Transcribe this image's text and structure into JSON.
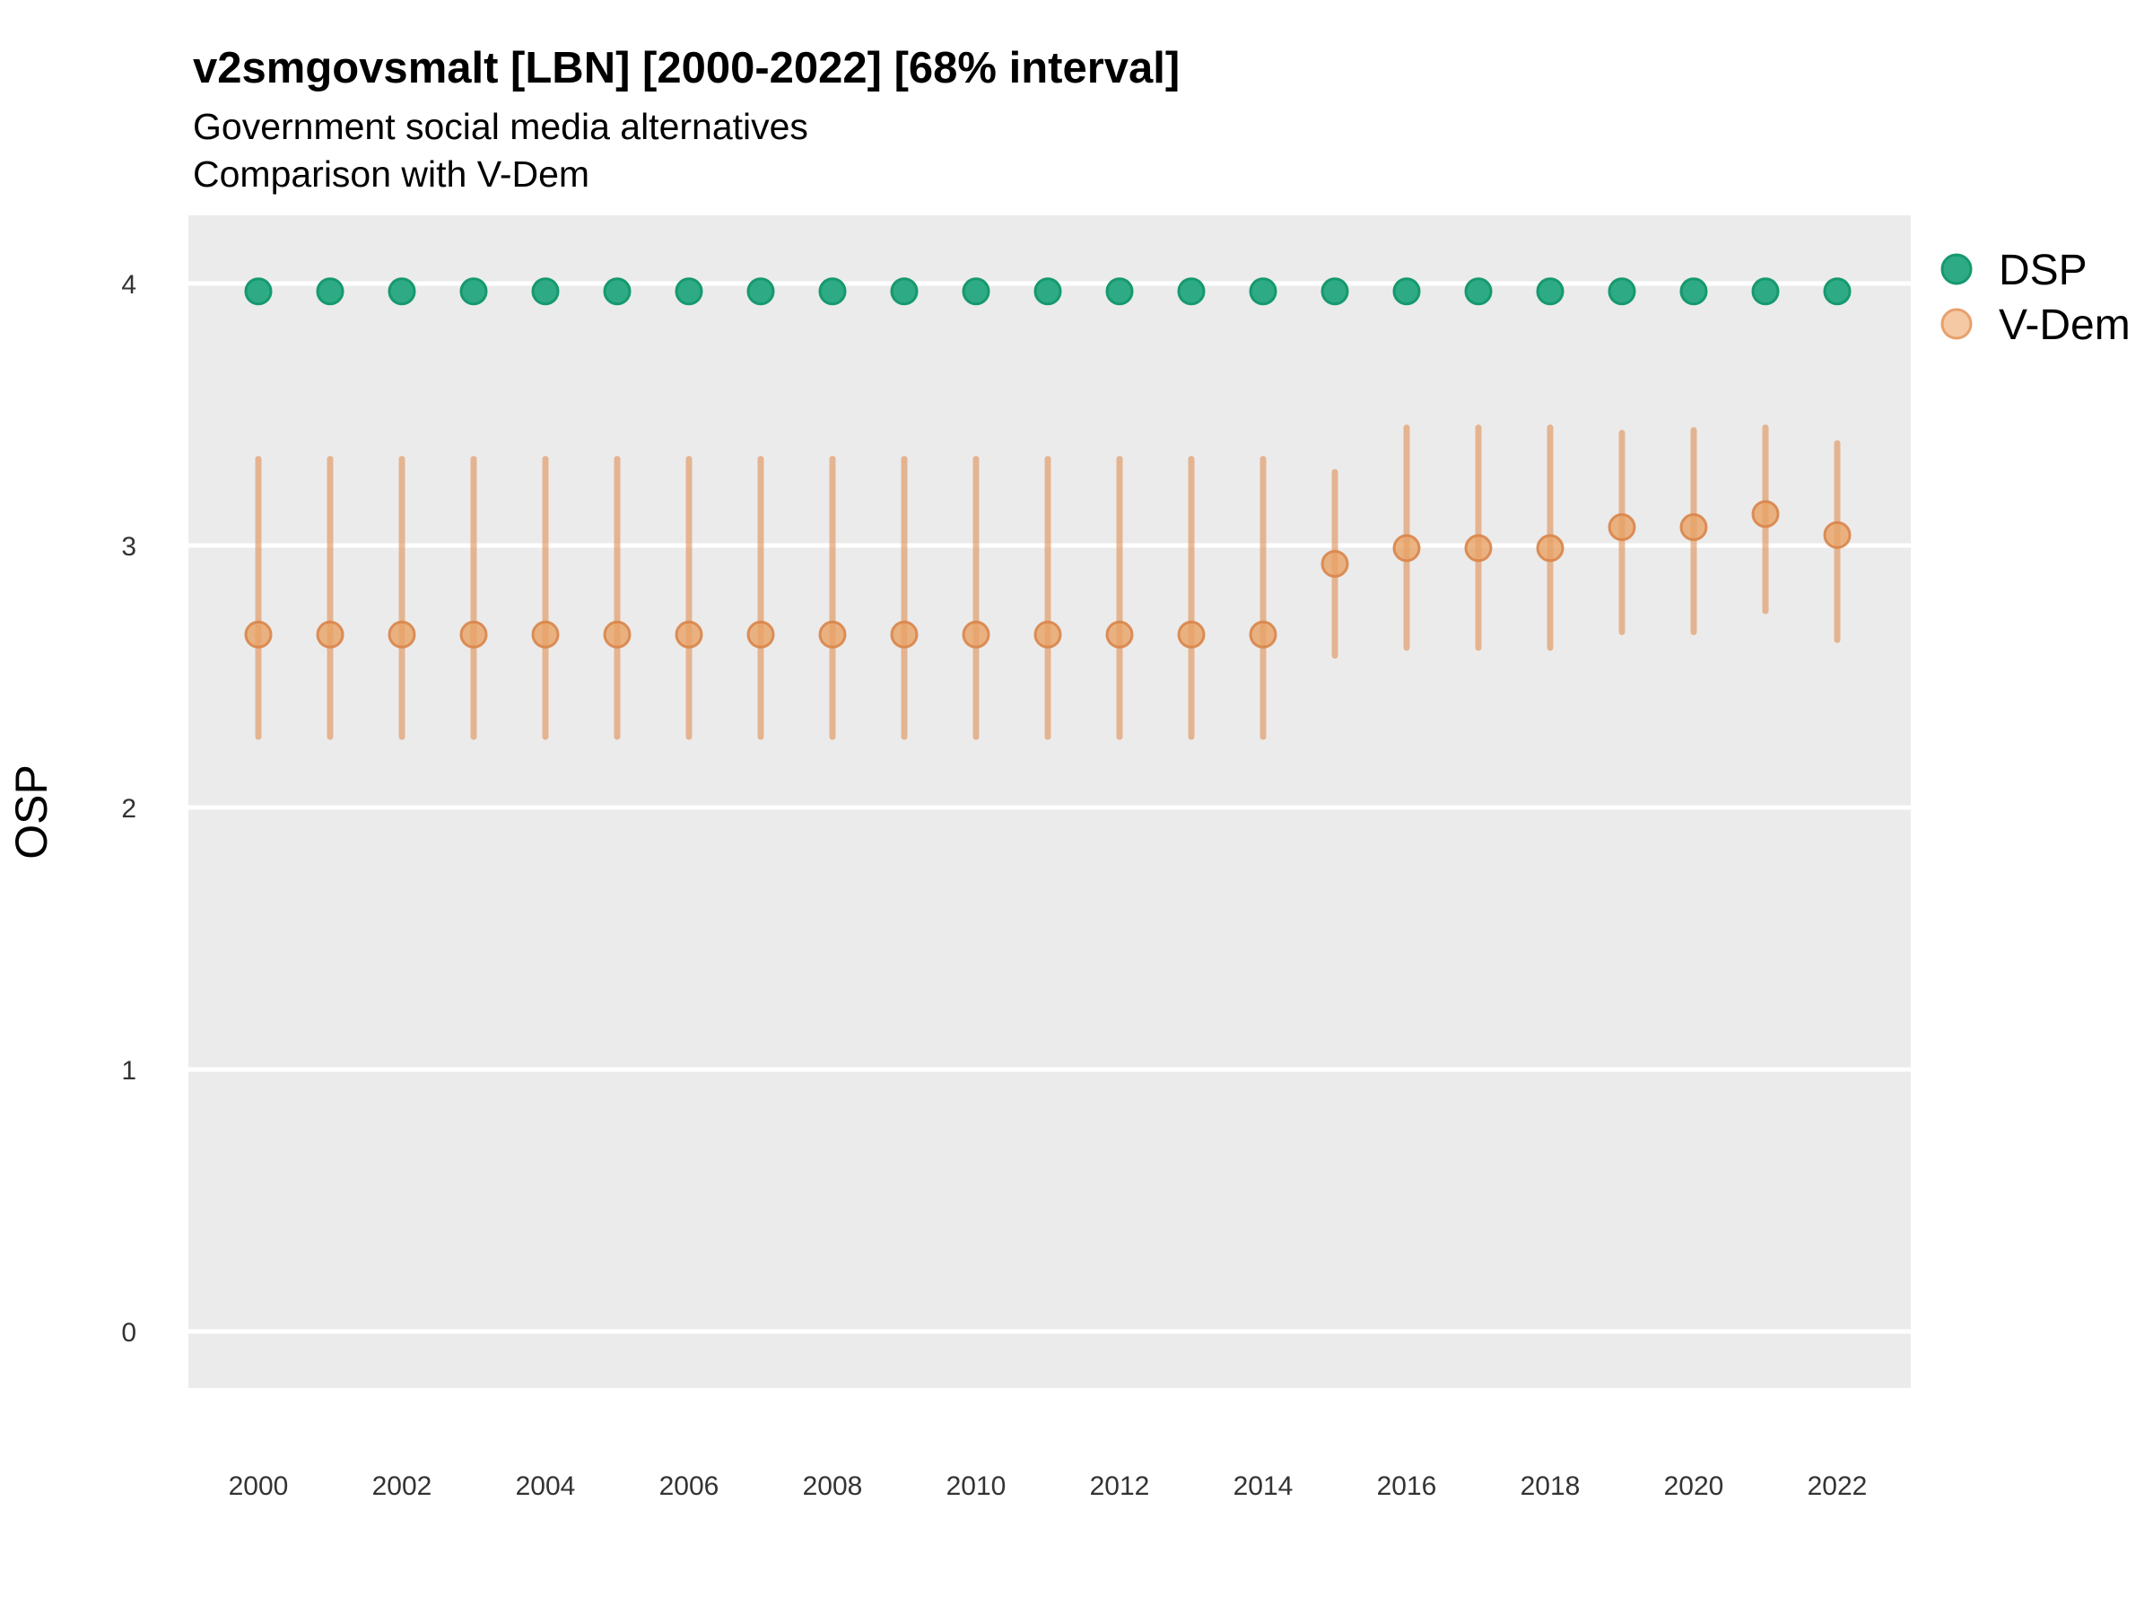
{
  "header": {
    "title": "v2smgovsmalt [LBN] [2000-2022] [68% interval]",
    "subtitle1": "Government social media alternatives",
    "subtitle2": "Comparison with V-Dem"
  },
  "y_axis": {
    "label": "OSP",
    "ticks": [
      "4",
      "3",
      "2",
      "1",
      "0"
    ],
    "tick_values": [
      4,
      3,
      2,
      1,
      0
    ]
  },
  "x_axis": {
    "ticks": [
      "2000",
      "2002",
      "2004",
      "2006",
      "2008",
      "2010",
      "2012",
      "2014",
      "2016",
      "2018",
      "2020",
      "2022"
    ],
    "tick_values": [
      2000,
      2002,
      2004,
      2006,
      2008,
      2010,
      2012,
      2014,
      2016,
      2018,
      2020,
      2022
    ]
  },
  "legend": {
    "items": [
      {
        "label": "DSP",
        "swatch_fill": "#2EAA85",
        "swatch_stroke": "#16996E"
      },
      {
        "label": "V-Dem",
        "swatch_fill": "#F4C9A3",
        "swatch_stroke": "#E8A06C"
      }
    ]
  },
  "colors": {
    "panel_background": "#EBEBEB",
    "gridline": "#FFFFFF",
    "tick_text": "#333333",
    "title_text": "#000000",
    "dsp_fill": "#2EAA85",
    "dsp_stroke": "#16996E",
    "vdem_dot_fill": "#E9A265",
    "vdem_dot_stroke": "#D9854A",
    "vdem_bar": "#E1945B"
  },
  "chart_data": {
    "type": "pointrange",
    "title": "v2smgovsmalt [LBN] [2000-2022] [68% interval]",
    "subtitle": [
      "Government social media alternatives",
      "Comparison with V-Dem"
    ],
    "xlabel": "",
    "ylabel": "OSP",
    "interval_label": "68% interval",
    "country": "LBN",
    "x": [
      2000,
      2001,
      2002,
      2003,
      2004,
      2005,
      2006,
      2007,
      2008,
      2009,
      2010,
      2011,
      2012,
      2013,
      2014,
      2015,
      2016,
      2017,
      2018,
      2019,
      2020,
      2021,
      2022
    ],
    "ylim": [
      -0.22,
      4.27
    ],
    "yticks": [
      0,
      1,
      2,
      3,
      4
    ],
    "grid": "major-horizontal-only",
    "legend_position": "right",
    "series": [
      {
        "name": "DSP",
        "values": [
          3.97,
          3.97,
          3.97,
          3.97,
          3.97,
          3.97,
          3.97,
          3.97,
          3.97,
          3.97,
          3.97,
          3.97,
          3.97,
          3.97,
          3.97,
          3.97,
          3.97,
          3.97,
          3.97,
          3.97,
          3.97,
          3.97,
          3.97
        ]
      },
      {
        "name": "V-Dem",
        "values": [
          2.66,
          2.66,
          2.66,
          2.66,
          2.66,
          2.66,
          2.66,
          2.66,
          2.66,
          2.66,
          2.66,
          2.66,
          2.66,
          2.66,
          2.66,
          2.93,
          2.99,
          2.99,
          2.99,
          3.07,
          3.07,
          3.12,
          3.04
        ],
        "lower": [
          2.27,
          2.27,
          2.27,
          2.27,
          2.27,
          2.27,
          2.27,
          2.27,
          2.27,
          2.27,
          2.27,
          2.27,
          2.27,
          2.27,
          2.27,
          2.58,
          2.61,
          2.61,
          2.61,
          2.67,
          2.67,
          2.75,
          2.64
        ],
        "upper": [
          3.33,
          3.33,
          3.33,
          3.33,
          3.33,
          3.33,
          3.33,
          3.33,
          3.33,
          3.33,
          3.33,
          3.33,
          3.33,
          3.33,
          3.33,
          3.28,
          3.45,
          3.45,
          3.45,
          3.43,
          3.44,
          3.45,
          3.39
        ]
      }
    ]
  }
}
